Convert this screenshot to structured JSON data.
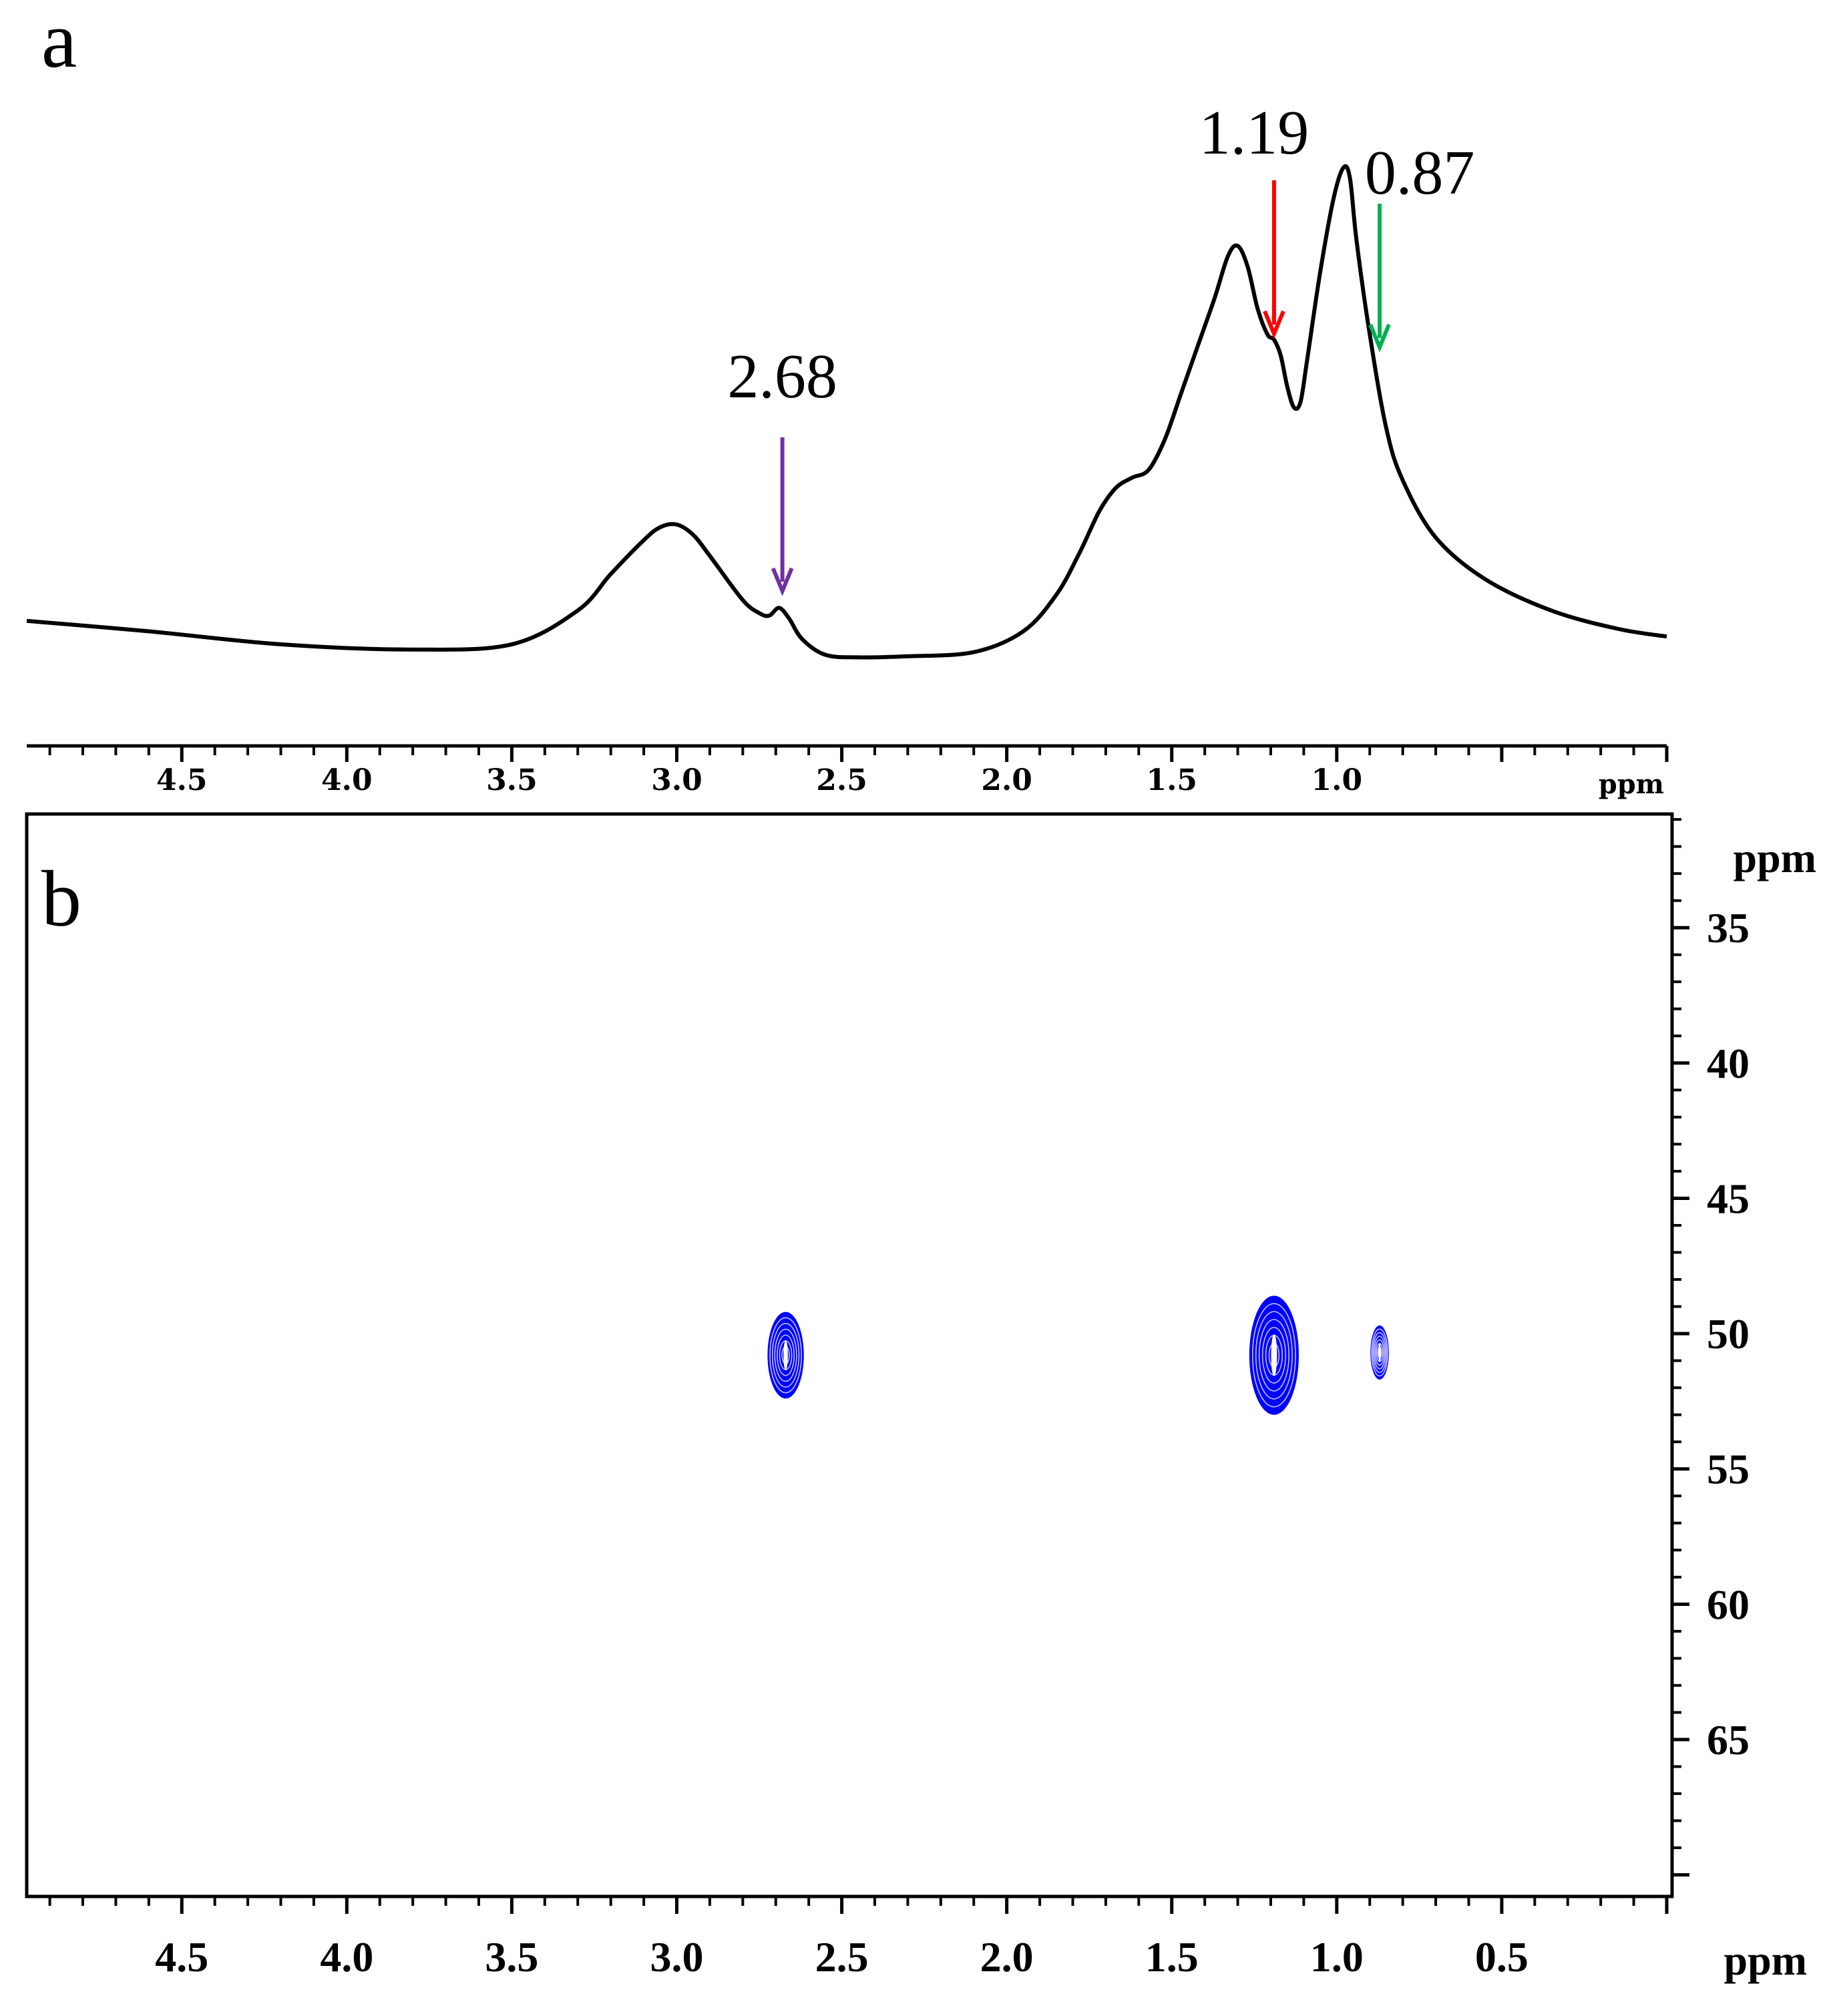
{
  "chart_data": [
    {
      "panel": "a",
      "type": "line",
      "title": "",
      "xlabel": "ppm",
      "ylabel": "",
      "xlim": [
        4.97,
        0.0
      ],
      "x_reversed": true,
      "x_ticks": [
        "4.5",
        "4.0",
        "3.5",
        "3.0",
        "2.5",
        "2.0",
        "1.5",
        "1.0"
      ],
      "x_tick_values": [
        4.5,
        4.0,
        3.5,
        3.0,
        2.5,
        2.0,
        1.5,
        1.0
      ],
      "grid": false,
      "line_color": "#000000",
      "series": [
        {
          "x": [
            4.97,
            4.6,
            4.2,
            3.8,
            3.5,
            3.3,
            3.2,
            3.1,
            3.05,
            3.0,
            2.95,
            2.9,
            2.8,
            2.75,
            2.72,
            2.69,
            2.66,
            2.62,
            2.55,
            2.45,
            2.3,
            2.1,
            1.95,
            1.85,
            1.78,
            1.72,
            1.67,
            1.62,
            1.57,
            1.52,
            1.47,
            1.42,
            1.37,
            1.33,
            1.3,
            1.27,
            1.24,
            1.21,
            1.19,
            1.17,
            1.15,
            1.13,
            1.11,
            1.09,
            1.05,
            1.01,
            0.98,
            0.96,
            0.94,
            0.9,
            0.85,
            0.8,
            0.7,
            0.55,
            0.35,
            0.15,
            0.0
          ],
          "y": [
            0.09,
            0.07,
            0.045,
            0.035,
            0.045,
            0.11,
            0.18,
            0.245,
            0.27,
            0.275,
            0.255,
            0.215,
            0.13,
            0.105,
            0.1,
            0.115,
            0.095,
            0.055,
            0.025,
            0.02,
            0.022,
            0.03,
            0.07,
            0.14,
            0.22,
            0.3,
            0.345,
            0.365,
            0.38,
            0.44,
            0.53,
            0.62,
            0.71,
            0.79,
            0.81,
            0.77,
            0.69,
            0.64,
            0.63,
            0.6,
            0.54,
            0.5,
            0.51,
            0.59,
            0.76,
            0.9,
            0.96,
            0.94,
            0.82,
            0.64,
            0.46,
            0.36,
            0.25,
            0.17,
            0.11,
            0.075,
            0.06
          ]
        }
      ],
      "annotations": [
        {
          "text": "2.68",
          "x": 2.68,
          "arrow_color": "#7030a0"
        },
        {
          "text": "1.19",
          "x": 1.19,
          "arrow_color": "#ff0000"
        },
        {
          "text": "0.87",
          "x": 0.87,
          "arrow_color": "#00b050"
        }
      ]
    },
    {
      "panel": "b",
      "type": "scatter",
      "subtype": "2d-contour",
      "title": "",
      "xlabel": "ppm",
      "ylabel": "ppm",
      "xlim": [
        4.97,
        0.0
      ],
      "ylim": [
        30.8,
        70.8
      ],
      "x_reversed": true,
      "x_ticks": [
        "4.5",
        "4.0",
        "3.5",
        "3.0",
        "2.5",
        "2.0",
        "1.5",
        "1.0",
        "0.5"
      ],
      "x_tick_values": [
        4.5,
        4.0,
        3.5,
        3.0,
        2.5,
        2.0,
        1.5,
        1.0,
        0.5
      ],
      "y_ticks": [
        "35",
        "40",
        "45",
        "50",
        "55",
        "60",
        "65"
      ],
      "y_tick_values": [
        35,
        40,
        45,
        50,
        55,
        60,
        65
      ],
      "y_axis_side": "right",
      "grid": false,
      "contour_color": "#0000ff",
      "peaks": [
        {
          "x": 2.67,
          "y": 50.8,
          "dx": 0.055,
          "dy": 1.6
        },
        {
          "x": 1.19,
          "y": 50.8,
          "dx": 0.075,
          "dy": 2.2
        },
        {
          "x": 0.87,
          "y": 50.7,
          "dx": 0.028,
          "dy": 1.0
        }
      ]
    }
  ]
}
